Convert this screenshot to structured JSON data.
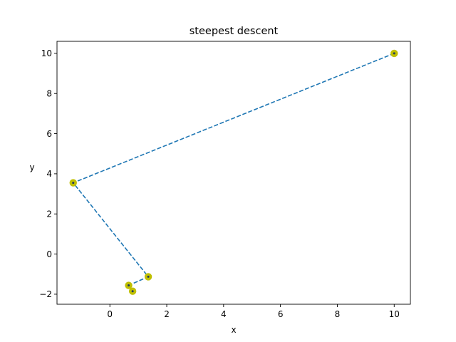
{
  "chart_data": {
    "type": "line",
    "title": "steepest descent",
    "xlabel": "x",
    "ylabel": "y",
    "xlim": [
      -1.86,
      10.57
    ],
    "ylim": [
      -2.5,
      10.6
    ],
    "xticks": [
      0,
      2,
      4,
      6,
      8,
      10
    ],
    "yticks": [
      -2,
      0,
      2,
      4,
      6,
      8,
      10
    ],
    "grid": false,
    "legend": "none",
    "series": [
      {
        "points": [
          {
            "x": 10.0,
            "y": 10.0
          },
          {
            "x": -1.29,
            "y": 3.55
          },
          {
            "x": 1.35,
            "y": -1.13
          },
          {
            "x": 0.66,
            "y": -1.56
          },
          {
            "x": 0.8,
            "y": -1.85
          }
        ],
        "line_color": "#1f77b4",
        "line_style": "dashed",
        "marker_outer_color": "#bfbf00",
        "marker_inner_color": "#1f3a5f"
      }
    ]
  }
}
